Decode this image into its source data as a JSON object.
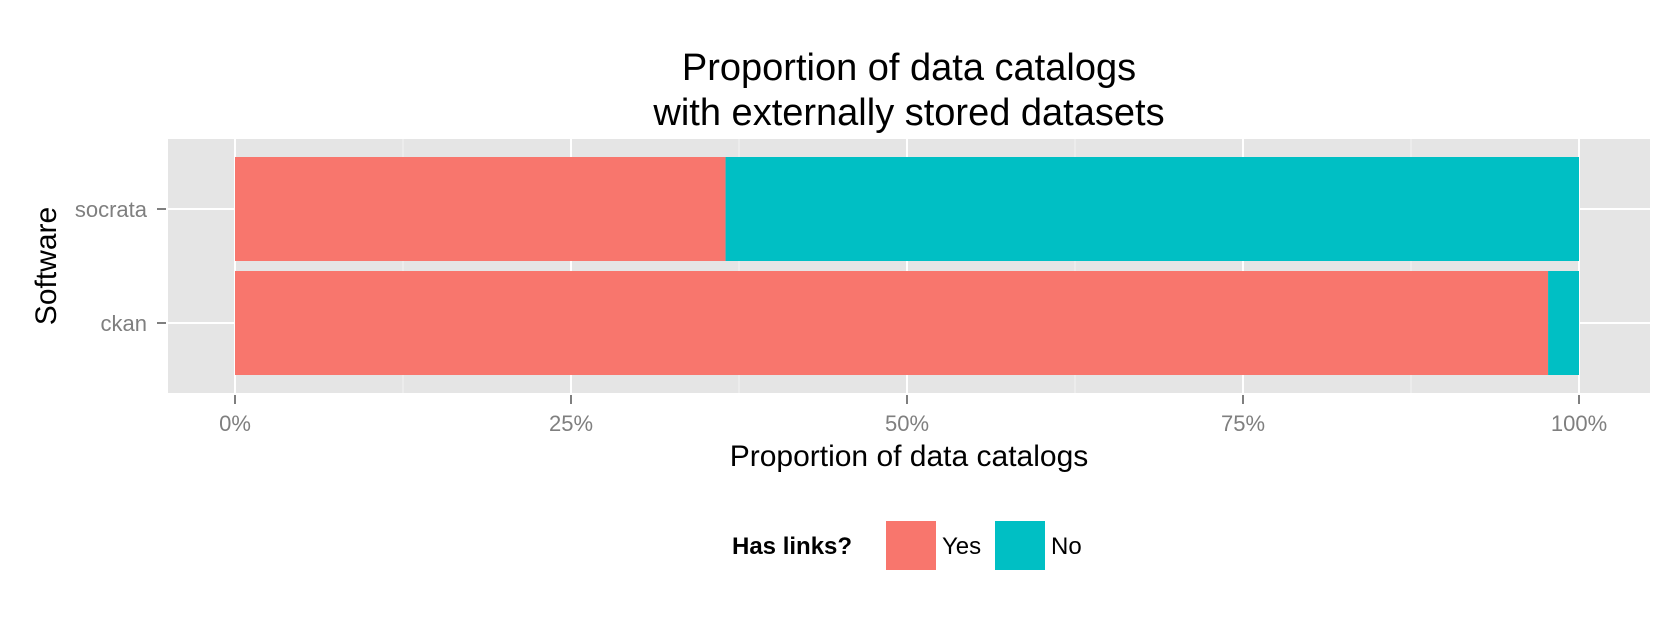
{
  "chart_data": {
    "type": "bar",
    "orientation": "horizontal",
    "stacked": true,
    "title": [
      "Proportion of data catalogs",
      "with externally stored datasets"
    ],
    "xlabel": "Proportion of data catalogs",
    "ylabel": "Software",
    "categories": [
      "socrata",
      "ckan"
    ],
    "series": [
      {
        "name": "Yes",
        "color": "#F8766D",
        "values": [
          0.365,
          0.977
        ]
      },
      {
        "name": "No",
        "color": "#00BFC4",
        "values": [
          0.635,
          0.023
        ]
      }
    ],
    "xlim": [
      0,
      1
    ],
    "x_ticks": [
      0,
      0.25,
      0.5,
      0.75,
      1
    ],
    "x_tick_labels": [
      "0%",
      "25%",
      "50%",
      "75%",
      "100%"
    ],
    "grid": true,
    "legend": {
      "title": "Has links?",
      "position": "bottom",
      "entries": [
        "Yes",
        "No"
      ]
    },
    "panel_background": "#E5E5E5"
  }
}
